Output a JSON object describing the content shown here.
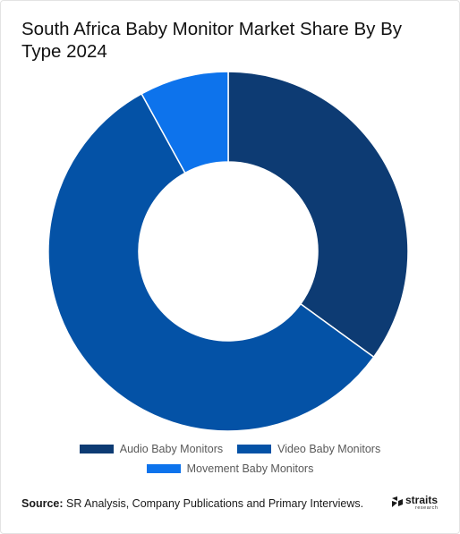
{
  "chart_data": {
    "type": "pie",
    "title": "South Africa Baby Monitor Market Share By By Type 2024",
    "series": [
      {
        "name": "Audio Baby Monitors",
        "value": 35,
        "color": "#0d3b73"
      },
      {
        "name": "Video Baby Monitors",
        "value": 57,
        "color": "#0452a6"
      },
      {
        "name": "Movement Baby Monitors",
        "value": 8,
        "color": "#0d73ec"
      }
    ],
    "legend_position": "bottom"
  },
  "footer": {
    "source_label": "Source:",
    "source_text": "SR Analysis, Company Publications and Primary Interviews.",
    "logo_name": "straits",
    "logo_sub": "research"
  }
}
